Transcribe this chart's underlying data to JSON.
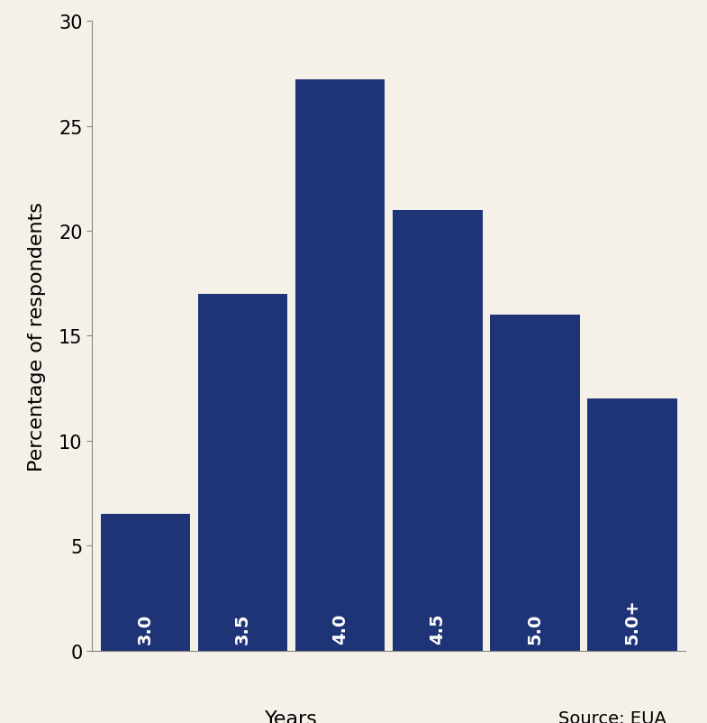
{
  "categories": [
    "3.0",
    "3.5",
    "4.0",
    "4.5",
    "5.0",
    "5.0+"
  ],
  "values": [
    6.5,
    17.0,
    27.2,
    21.0,
    16.0,
    12.0
  ],
  "bar_color": "#1F3476",
  "background_color": "#F5F0E8",
  "ylabel": "Percentage of respondents",
  "xlabel": "Years",
  "source_text": "Source: EUA",
  "ylim": [
    0,
    30
  ],
  "yticks": [
    0,
    5,
    10,
    15,
    20,
    25,
    30
  ],
  "ylabel_fontsize": 16,
  "xlabel_fontsize": 16,
  "tick_fontsize": 15,
  "label_fontsize": 14,
  "source_fontsize": 14
}
